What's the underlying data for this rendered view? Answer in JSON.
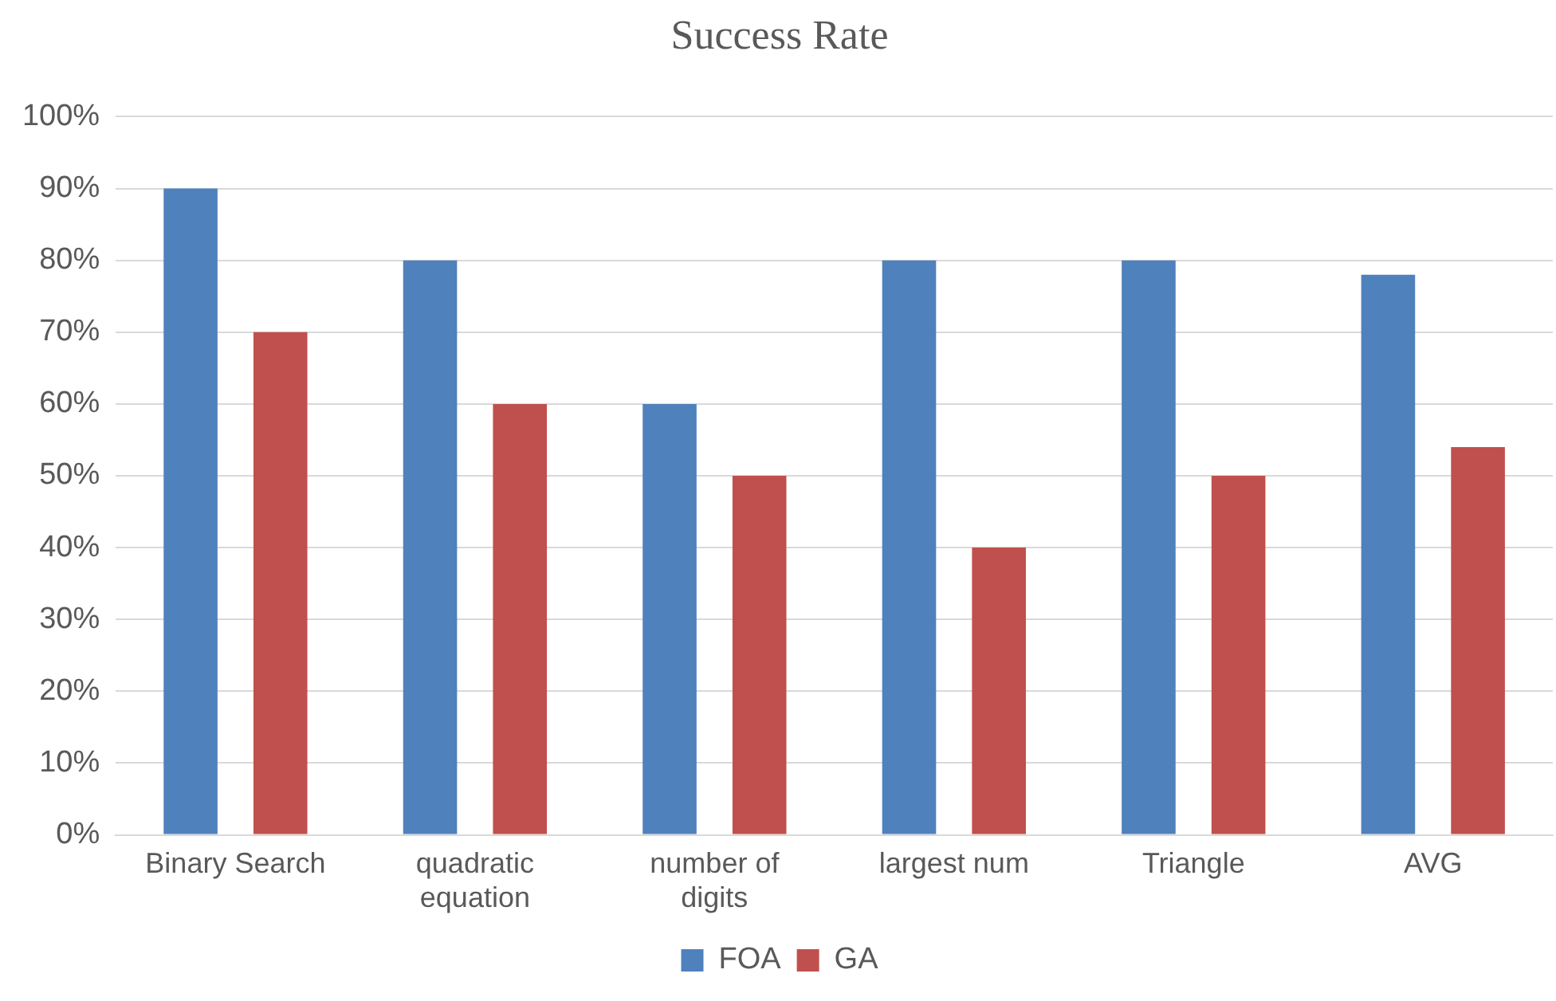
{
  "chart_data": {
    "type": "bar",
    "title": "Success Rate",
    "categories": [
      "Binary Search",
      "quadratic equation",
      "number of digits",
      "largest num",
      "Triangle",
      "AVG"
    ],
    "series": [
      {
        "name": "FOA",
        "color": "#4f81bd",
        "values": [
          90,
          80,
          60,
          80,
          80,
          78
        ]
      },
      {
        "name": "GA",
        "color": "#c0504d",
        "values": [
          70,
          60,
          50,
          40,
          50,
          54
        ]
      }
    ],
    "ylim": [
      0,
      100
    ],
    "yticks": [
      {
        "value": 0,
        "label": "0%"
      },
      {
        "value": 10,
        "label": "10%"
      },
      {
        "value": 20,
        "label": "20%"
      },
      {
        "value": 30,
        "label": "30%"
      },
      {
        "value": 40,
        "label": "40%"
      },
      {
        "value": 50,
        "label": "50%"
      },
      {
        "value": 60,
        "label": "60%"
      },
      {
        "value": 70,
        "label": "70%"
      },
      {
        "value": 80,
        "label": "80%"
      },
      {
        "value": 90,
        "label": "90%"
      },
      {
        "value": 100,
        "label": "100%"
      }
    ],
    "grid": "y",
    "legend": "bottom"
  }
}
